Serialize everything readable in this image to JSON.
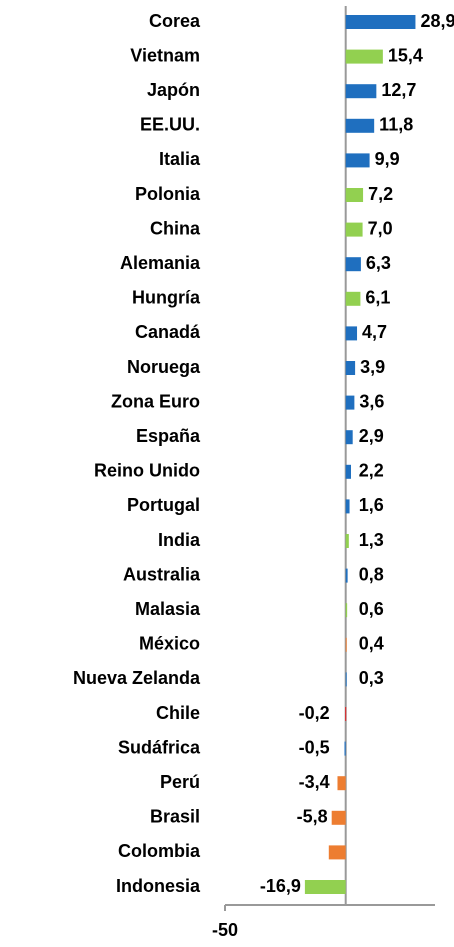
{
  "chart_data": {
    "type": "hbar",
    "categories": [
      "Corea",
      "Vietnam",
      "Japón",
      "EE.UU.",
      "Italia",
      "Polonia",
      "China",
      "Alemania",
      "Hungría",
      "Canadá",
      "Noruega",
      "Zona Euro",
      "España",
      "Reino Unido",
      "Portugal",
      "India",
      "Australia",
      "Malasia",
      "México",
      "Nueva Zelanda",
      "Chile",
      "Sudáfrica",
      "Perú",
      "Brasil",
      "Colombia",
      "Indonesia"
    ],
    "values": [
      28.9,
      15.4,
      12.7,
      11.8,
      9.9,
      7.2,
      7.0,
      6.3,
      6.1,
      4.7,
      3.9,
      3.6,
      2.9,
      2.2,
      1.6,
      1.3,
      0.8,
      0.6,
      0.4,
      0.3,
      -0.2,
      -0.5,
      -3.4,
      -5.8,
      -7,
      -16.9
    ],
    "value_labels": [
      "28,9",
      "15,4",
      "12,7",
      "11,8",
      "9,9",
      "7,2",
      "7,0",
      "6,3",
      "6,1",
      "4,7",
      "3,9",
      "3,6",
      "2,9",
      "2,2",
      "1,6",
      "1,3",
      "0,8",
      "0,6",
      "0,4",
      "0,3",
      "-0,2",
      "-0,5",
      "-3,4",
      "-5,8",
      null,
      "-16,9"
    ],
    "colors": [
      "#1f6fbf",
      "#92d050",
      "#1f6fbf",
      "#1f6fbf",
      "#1f6fbf",
      "#92d050",
      "#92d050",
      "#1f6fbf",
      "#92d050",
      "#1f6fbf",
      "#1f6fbf",
      "#1f6fbf",
      "#1f6fbf",
      "#1f6fbf",
      "#1f6fbf",
      "#92d050",
      "#1f6fbf",
      "#92d050",
      "#ed7d31",
      "#1f6fbf",
      "#e31a1c",
      "#1f6fbf",
      "#ed7d31",
      "#ed7d31",
      "#ed7d31",
      "#92d050"
    ],
    "xlim": [
      -50,
      37
    ],
    "xticks": [
      -50
    ]
  }
}
